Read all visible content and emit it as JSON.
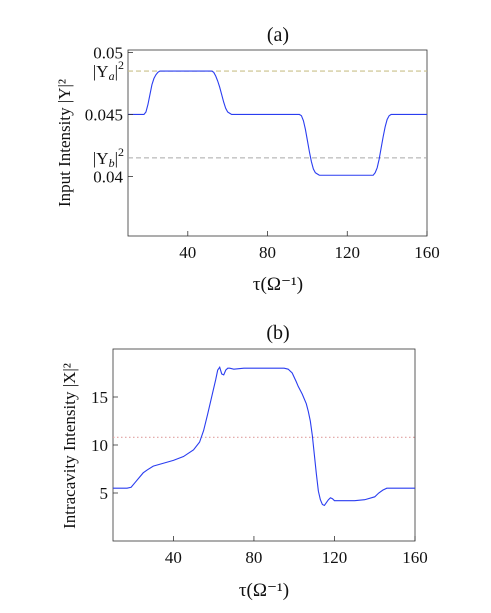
{
  "chart_data": [
    {
      "type": "line",
      "title": "(a)",
      "xlabel": "τ(Ω⁻¹)",
      "ylabel": "Input  Intensity |Y|²",
      "xlim": [
        10,
        160
      ],
      "ylim": [
        0.0352,
        0.0502
      ],
      "x_ticks": [
        40,
        80,
        120,
        160
      ],
      "x_tick_labels": [
        "40",
        "80",
        "120",
        "160"
      ],
      "y_ticks": [
        0.04,
        0.045,
        0.05
      ],
      "y_tick_labels": [
        "0.04",
        "0.045",
        "0.05"
      ],
      "reference_lines": [
        {
          "label": "|Ya|²",
          "label_main": "|Y",
          "label_sub": "a",
          "label_tail": "|",
          "label_sup": "2",
          "y": 0.0485,
          "color": "#c9c08a",
          "style": "dashed"
        },
        {
          "label": "|Yb|²",
          "label_main": "|Y",
          "label_sub": "b",
          "label_tail": "|",
          "label_sup": "2",
          "y": 0.0415,
          "color": "#a9a9a9",
          "style": "dashed"
        }
      ],
      "series": [
        {
          "color": "#2a3df0",
          "x": [
            10,
            18,
            19,
            20,
            21,
            22,
            23,
            24,
            25,
            26,
            52,
            53,
            54,
            55,
            56,
            57,
            58,
            59,
            60,
            61,
            62,
            63,
            64,
            96,
            97,
            98,
            99,
            100,
            101,
            102,
            103,
            104,
            105,
            106,
            107,
            133,
            134,
            135,
            136,
            137,
            138,
            139,
            140,
            141,
            142,
            143,
            144,
            160
          ],
          "y": [
            0.045,
            0.045,
            0.0452,
            0.0458,
            0.0466,
            0.0474,
            0.0479,
            0.0482,
            0.0484,
            0.0485,
            0.0485,
            0.0484,
            0.0481,
            0.0477,
            0.0472,
            0.0466,
            0.046,
            0.0455,
            0.0452,
            0.0451,
            0.045,
            0.045,
            0.045,
            0.045,
            0.0449,
            0.0445,
            0.0438,
            0.0429,
            0.042,
            0.0412,
            0.0406,
            0.0403,
            0.0402,
            0.0401,
            0.0401,
            0.0401,
            0.0403,
            0.0407,
            0.0414,
            0.0423,
            0.0432,
            0.044,
            0.0446,
            0.0449,
            0.045,
            0.045,
            0.045,
            0.045
          ]
        }
      ]
    },
    {
      "type": "line",
      "title": "(b)",
      "xlabel": "τ(Ω⁻¹)",
      "ylabel": "Intracavity Intensity |X|²",
      "xlim": [
        10,
        160
      ],
      "ylim": [
        0,
        20
      ],
      "x_ticks": [
        40,
        80,
        120,
        160
      ],
      "x_tick_labels": [
        "40",
        "80",
        "120",
        "160"
      ],
      "y_ticks": [
        5,
        10,
        15
      ],
      "y_tick_labels": [
        "5",
        "10",
        "15"
      ],
      "reference_lines": [
        {
          "y": 10.8,
          "color": "#e0a0a0",
          "style": "dotted"
        }
      ],
      "series": [
        {
          "color": "#2a3df0",
          "x": [
            10,
            17,
            19,
            21,
            23,
            25,
            27,
            30,
            35,
            40,
            45,
            50,
            53,
            55,
            57,
            59,
            61,
            62,
            63,
            64,
            65,
            66,
            67,
            68,
            70,
            75,
            80,
            85,
            90,
            95,
            97,
            99,
            101,
            102,
            104,
            106,
            107,
            108,
            109,
            110,
            111,
            112,
            113,
            114,
            115,
            116,
            117,
            118,
            119,
            120,
            122,
            126,
            130,
            135,
            140,
            142,
            144,
            146,
            148,
            150,
            160
          ],
          "y": [
            5.5,
            5.5,
            5.6,
            6.1,
            6.6,
            7.1,
            7.4,
            7.8,
            8.1,
            8.4,
            8.8,
            9.5,
            10.3,
            11.5,
            13.2,
            15.0,
            16.8,
            17.8,
            18.1,
            17.4,
            17.3,
            17.8,
            18.0,
            18.0,
            17.9,
            18.0,
            18.0,
            18.0,
            18.0,
            18.0,
            17.9,
            17.5,
            16.6,
            16.1,
            15.3,
            14.3,
            13.5,
            12.5,
            11.0,
            9.0,
            7.0,
            5.2,
            4.3,
            3.8,
            3.7,
            4.0,
            4.3,
            4.5,
            4.4,
            4.2,
            4.2,
            4.2,
            4.2,
            4.3,
            4.6,
            5.0,
            5.3,
            5.5,
            5.5,
            5.5,
            5.5
          ]
        }
      ]
    }
  ]
}
